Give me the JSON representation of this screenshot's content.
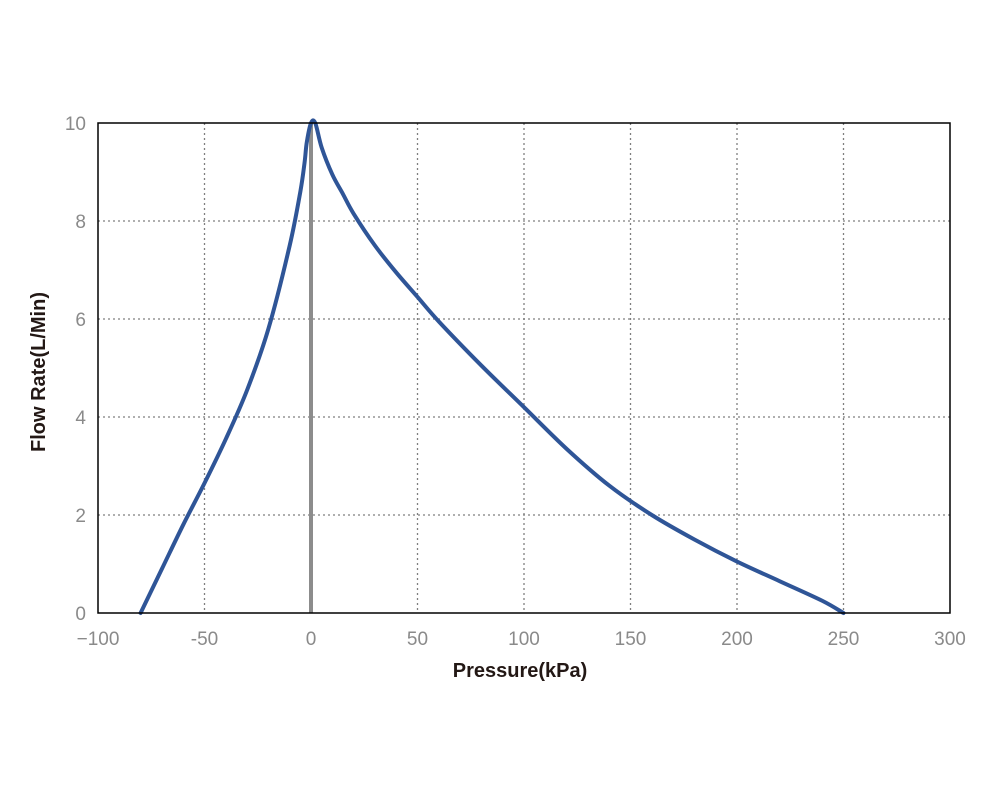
{
  "chart_data": {
    "type": "line",
    "title": "",
    "xlabel": "Pressure(kPa)",
    "ylabel": "Flow Rate(L/Min)",
    "xlim": [
      -100,
      300
    ],
    "ylim": [
      0,
      10
    ],
    "xticks": [
      -100,
      -50,
      0,
      50,
      100,
      150,
      200,
      250,
      300
    ],
    "xtick_labels": [
      "−100",
      "-50",
      "0",
      "50",
      "100",
      "150",
      "200",
      "250",
      "300"
    ],
    "yticks": [
      0,
      2,
      4,
      6,
      8,
      10
    ],
    "ytick_labels": [
      "0",
      "2",
      "4",
      "6",
      "8",
      "10"
    ],
    "grid": true,
    "grid_style": "dotted",
    "reference_line_x": 0,
    "series": [
      {
        "color": "#2f5597",
        "x": [
          -80,
          -70,
          -60,
          -50,
          -40,
          -30,
          -20,
          -10,
          -5,
          -3,
          -2,
          0,
          2,
          5,
          10,
          15,
          20,
          30,
          40,
          50,
          60,
          80,
          100,
          120,
          140,
          160,
          180,
          200,
          220,
          240,
          250
        ],
        "y": [
          0,
          0.9,
          1.8,
          2.65,
          3.55,
          4.55,
          5.8,
          7.5,
          8.6,
          9.2,
          9.6,
          10,
          10,
          9.5,
          8.95,
          8.55,
          8.15,
          7.5,
          6.95,
          6.45,
          5.95,
          5.05,
          4.2,
          3.35,
          2.6,
          2.0,
          1.5,
          1.05,
          0.65,
          0.25,
          0
        ]
      }
    ],
    "colors": {
      "line": "#2f5597",
      "reference_line": "#8c8c8c",
      "grid": "#7f7f7f",
      "frame": "#000000"
    }
  }
}
